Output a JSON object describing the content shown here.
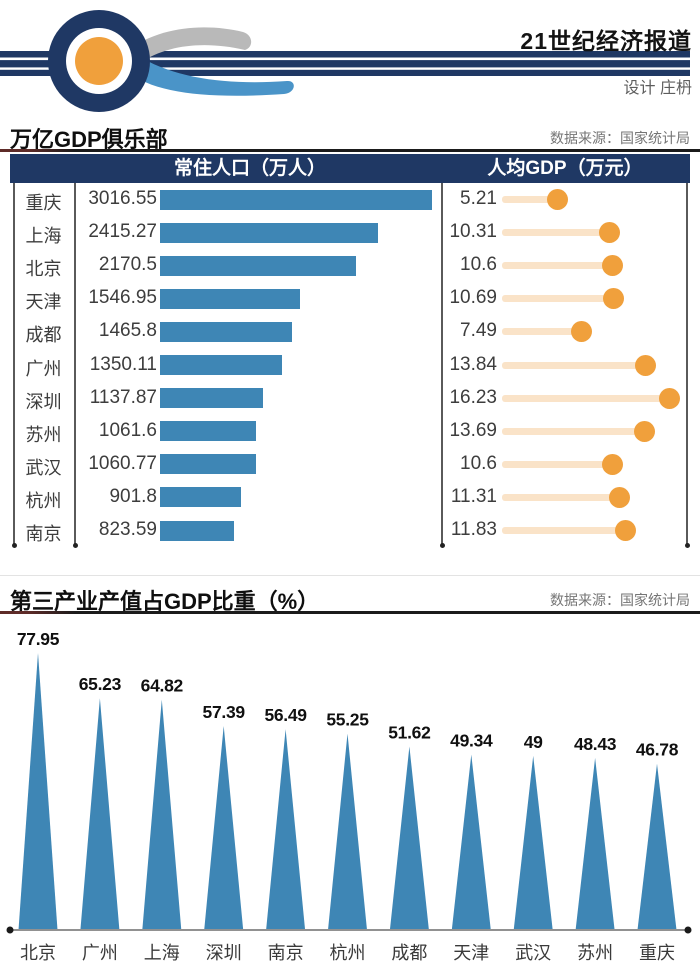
{
  "header": {
    "brand": "21世纪经济报道",
    "credit": "设计 庄枬"
  },
  "sections": [
    {
      "title": "万亿GDP俱乐部",
      "source": "数据来源：国家统计局",
      "columns": [
        "常住人口（万人）",
        "人均GDP（万元）"
      ]
    },
    {
      "title": "第三产业产值占GDP比重（%）",
      "source": "数据来源：国家统计局"
    }
  ],
  "chart_data": [
    {
      "type": "bar",
      "title": "万亿GDP俱乐部",
      "orientation": "horizontal",
      "categories": [
        "重庆",
        "上海",
        "北京",
        "天津",
        "成都",
        "广州",
        "深圳",
        "苏州",
        "武汉",
        "杭州",
        "南京"
      ],
      "series": [
        {
          "name": "常住人口（万人）",
          "values": [
            3016.55,
            2415.27,
            2170.5,
            1546.95,
            1465.8,
            1350.11,
            1137.87,
            1061.6,
            1060.77,
            901.8,
            823.59
          ]
        },
        {
          "name": "人均GDP（万元）",
          "values": [
            5.21,
            10.31,
            10.6,
            10.69,
            7.49,
            13.84,
            16.23,
            13.69,
            10.6,
            11.31,
            11.83
          ]
        }
      ],
      "xlim_population": [
        0,
        3016.55
      ],
      "xlim_gdp": [
        0,
        18
      ],
      "legend_position": "none",
      "grid": false
    },
    {
      "type": "area",
      "title": "第三产业产值占GDP比重（%）",
      "categories": [
        "北京",
        "广州",
        "上海",
        "深圳",
        "南京",
        "杭州",
        "成都",
        "天津",
        "武汉",
        "苏州",
        "重庆"
      ],
      "values": [
        77.95,
        65.23,
        64.82,
        57.39,
        56.49,
        55.25,
        51.62,
        49.34,
        49,
        48.43,
        46.78
      ],
      "ylim": [
        0,
        80
      ],
      "grid": false,
      "legend_position": "none"
    }
  ],
  "colors": {
    "navy": "#1f3864",
    "bar_blue": "#3e86b5",
    "swoosh_blue": "#4a94c8",
    "swoosh_gray": "#b9b9b9",
    "orange": "#f0a03c",
    "lollipop_track": "#fae3c8",
    "source_gray": "#757575",
    "border_gray": "#5a5a5a",
    "axis_gray": "#919191",
    "text_dark": "#3d3d3d"
  }
}
